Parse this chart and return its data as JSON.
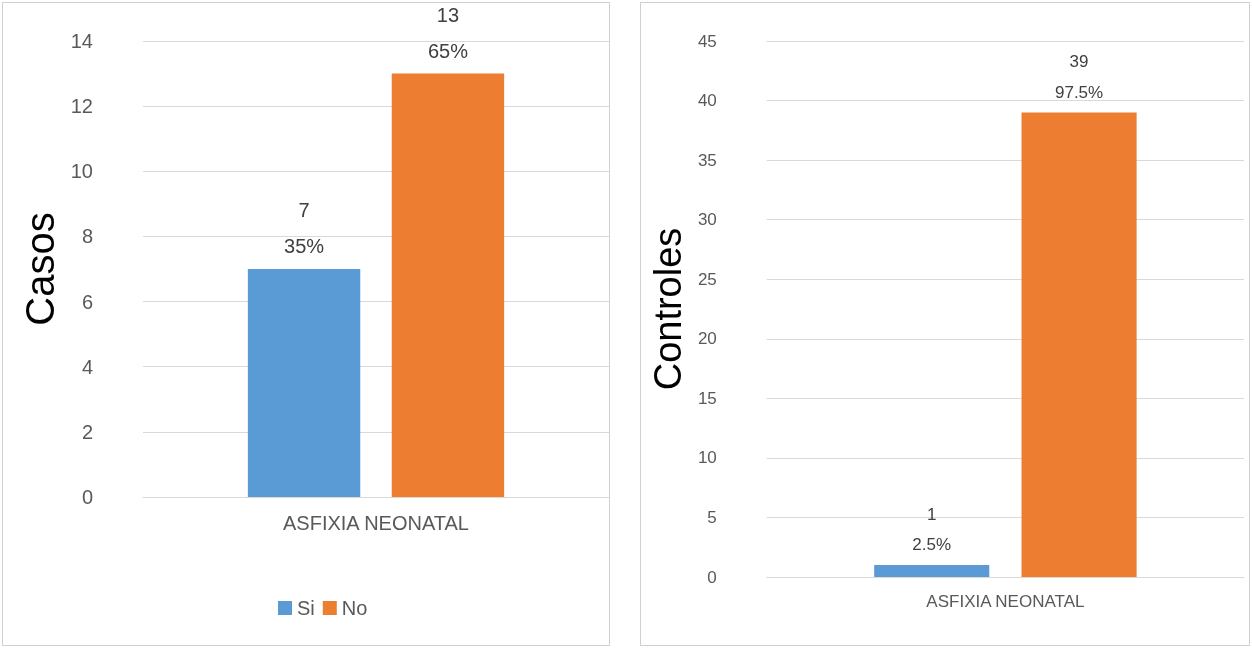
{
  "chart_data": [
    {
      "type": "bar",
      "ylabel": "Casos",
      "categories": [
        "ASFIXIA NEONATAL"
      ],
      "series": [
        {
          "name": "Si",
          "color": "#5b9bd5",
          "values": [
            7
          ],
          "value_labels": [
            "7\n35%"
          ]
        },
        {
          "name": "No",
          "color": "#ed7d31",
          "values": [
            13
          ],
          "value_labels": [
            "13\n65%"
          ]
        }
      ],
      "ylim": [
        0,
        14
      ],
      "yticks": [
        0,
        2,
        4,
        6,
        8,
        10,
        12,
        14
      ],
      "grid": "y",
      "legend": "bottom"
    },
    {
      "type": "bar",
      "ylabel": "Controles",
      "categories": [
        "ASFIXIA NEONATAL"
      ],
      "series": [
        {
          "color": "#5b9bd5",
          "values": [
            1
          ],
          "value_labels": [
            "1\n2.5%"
          ]
        },
        {
          "color": "#ed7d31",
          "values": [
            39
          ],
          "value_labels": [
            "39\n97.5%"
          ]
        }
      ],
      "ylim": [
        0,
        45
      ],
      "yticks": [
        0,
        5,
        10,
        15,
        20,
        25,
        30,
        35,
        40,
        45
      ],
      "grid": "y",
      "legend": false
    }
  ]
}
